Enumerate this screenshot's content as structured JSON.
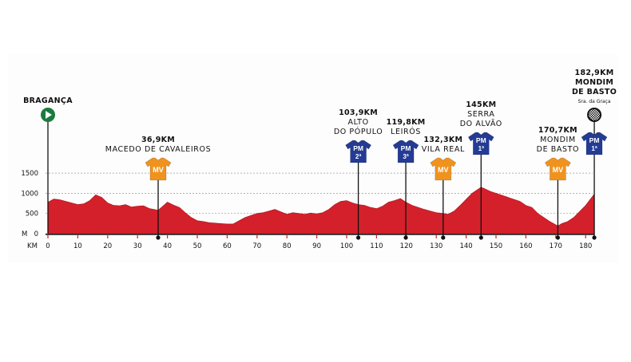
{
  "chart_data": {
    "type": "area",
    "title": "",
    "xlabel": "KM",
    "ylabel": "M",
    "xlim": [
      0,
      182.9
    ],
    "ylim": [
      0,
      1700
    ],
    "x_ticks": [
      "0",
      "10",
      "20",
      "30",
      "40",
      "50",
      "60",
      "70",
      "80",
      "90",
      "100",
      "110",
      "120",
      "130",
      "140",
      "150",
      "160",
      "170",
      "180"
    ],
    "y_ticks": [
      "1500",
      "1000",
      "500",
      "0"
    ],
    "grid": "horizontal dashed",
    "fill_color": "#d4202a",
    "profile": {
      "x": [
        0,
        2,
        4,
        6,
        8,
        10,
        12,
        14,
        16,
        18,
        20,
        22,
        24,
        26,
        28,
        30,
        32,
        34,
        36.9,
        38,
        40,
        42,
        44,
        46,
        48,
        50,
        52,
        54,
        56,
        58,
        60,
        62,
        64,
        66,
        68,
        70,
        72,
        74,
        76,
        78,
        80,
        82,
        84,
        86,
        88,
        90,
        92,
        94,
        96,
        98,
        100,
        102,
        103.9,
        106,
        108,
        110,
        112,
        114,
        116,
        118,
        119.8,
        122,
        124,
        126,
        128,
        130,
        132.3,
        134,
        136,
        138,
        140,
        142,
        144,
        145,
        146,
        148,
        150,
        152,
        154,
        156,
        158,
        160,
        162,
        164,
        166,
        168,
        170.7,
        172,
        174,
        176,
        178,
        180,
        182.9
      ],
      "y": [
        780,
        860,
        840,
        800,
        760,
        720,
        740,
        820,
        960,
        900,
        760,
        700,
        690,
        720,
        660,
        680,
        690,
        620,
        580,
        650,
        780,
        710,
        650,
        520,
        400,
        320,
        300,
        270,
        260,
        250,
        240,
        240,
        320,
        400,
        450,
        500,
        520,
        560,
        600,
        540,
        480,
        520,
        500,
        480,
        510,
        490,
        520,
        600,
        720,
        800,
        820,
        760,
        720,
        700,
        650,
        620,
        680,
        780,
        820,
        870,
        780,
        700,
        650,
        600,
        560,
        520,
        500,
        480,
        560,
        700,
        850,
        1000,
        1100,
        1150,
        1120,
        1050,
        1000,
        950,
        900,
        850,
        800,
        700,
        650,
        500,
        400,
        300,
        190,
        250,
        300,
        400,
        550,
        700,
        980
      ],
      "unit_x": "km",
      "unit_y": "m"
    },
    "start": {
      "name": "BRAGANÇA",
      "km": 0
    },
    "markers": [
      {
        "km": 36.9,
        "km_label": "36,9KM",
        "name_lines": [
          "MACEDO DE CAVALEIROS"
        ],
        "type": "MV",
        "category": "",
        "color": "#f0931e"
      },
      {
        "km": 103.9,
        "km_label": "103,9KM",
        "name_lines": [
          "ALTO",
          "DO PÓPULO"
        ],
        "type": "PM",
        "category": "2ª",
        "color": "#243b95"
      },
      {
        "km": 119.8,
        "km_label": "119,8KM",
        "name_lines": [
          "LEIRÓS"
        ],
        "type": "PM",
        "category": "3ª",
        "color": "#243b95"
      },
      {
        "km": 132.3,
        "km_label": "132,3KM",
        "name_lines": [
          "VILA REAL"
        ],
        "type": "MV",
        "category": "",
        "color": "#f0931e"
      },
      {
        "km": 145,
        "km_label": "145KM",
        "name_lines": [
          "SERRA",
          "DO ALVÃO"
        ],
        "type": "PM",
        "category": "1ª",
        "color": "#243b95"
      },
      {
        "km": 170.7,
        "km_label": "170,7KM",
        "name_lines": [
          "MONDIM",
          "DE BASTO"
        ],
        "type": "MV",
        "category": "",
        "color": "#f0931e"
      },
      {
        "km": 182.9,
        "km_label": "182,9KM",
        "name_lines": [
          "MONDIM",
          "DE BASTO"
        ],
        "sub": "Sra. da Graça",
        "type": "PM",
        "category": "1ª",
        "color": "#243b95",
        "finish": true
      }
    ]
  }
}
